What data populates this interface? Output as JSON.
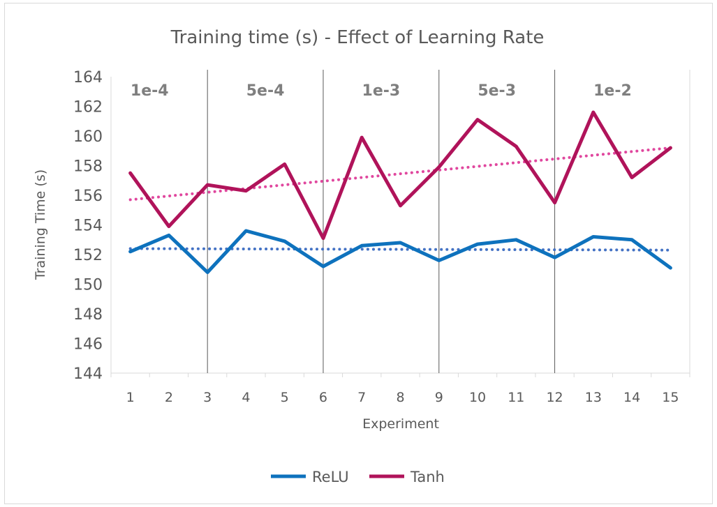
{
  "chart_data": {
    "type": "line",
    "title": "Training time (s) - Effect of Learning Rate",
    "xlabel": "Experiment",
    "ylabel": "Training Time (s)",
    "x": [
      1,
      2,
      3,
      4,
      5,
      6,
      7,
      8,
      9,
      10,
      11,
      12,
      13,
      14,
      15
    ],
    "ylim": [
      144,
      164
    ],
    "yticks": [
      144,
      146,
      148,
      150,
      152,
      154,
      156,
      158,
      160,
      162,
      164
    ],
    "grid": false,
    "legend_position": "bottom",
    "groups": [
      {
        "label": "1e-4",
        "start": 1,
        "end": 2
      },
      {
        "label": "5e-4",
        "start": 4,
        "end": 5
      },
      {
        "label": "1e-3",
        "start": 7,
        "end": 8
      },
      {
        "label": "5e-3",
        "start": 10,
        "end": 11
      },
      {
        "label": "1e-2",
        "start": 13,
        "end": 14
      }
    ],
    "series": [
      {
        "name": "ReLU",
        "color": "#0e72bd",
        "values": [
          152.2,
          153.3,
          150.8,
          153.6,
          152.9,
          151.2,
          152.6,
          152.8,
          151.6,
          152.7,
          153.0,
          151.8,
          153.2,
          153.0,
          151.1
        ],
        "trendline": {
          "type": "linear",
          "start": 152.4,
          "end": 152.3,
          "color": "#4472c4"
        }
      },
      {
        "name": "Tanh",
        "color": "#b0135a",
        "values": [
          157.5,
          153.9,
          156.7,
          156.3,
          158.1,
          153.1,
          159.9,
          155.3,
          157.9,
          161.1,
          159.3,
          155.5,
          161.6,
          157.2,
          159.2
        ],
        "trendline": {
          "type": "linear",
          "start": 155.7,
          "end": 159.2,
          "color": "#e0479e"
        }
      }
    ]
  }
}
